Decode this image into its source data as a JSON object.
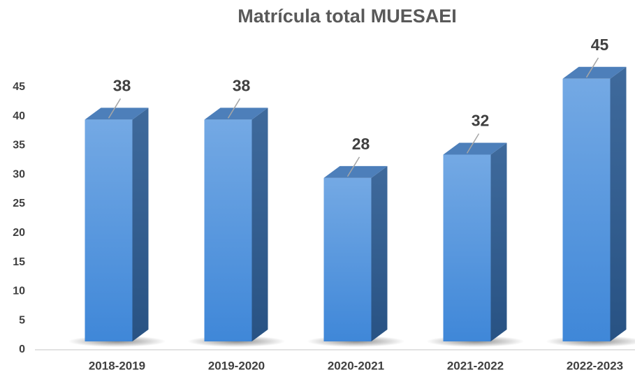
{
  "chart_data": {
    "type": "bar3d",
    "title": "Matrícula total MUESAEI",
    "categories": [
      "2018-2019",
      "2019-2020",
      "2020-2021",
      "2021-2022",
      "2022-2023"
    ],
    "values": [
      38,
      38,
      28,
      32,
      45
    ],
    "color": "#4a8fdc",
    "ylim": [
      0,
      50
    ],
    "yticks": [
      0,
      5,
      10,
      15,
      20,
      25,
      30,
      35,
      40,
      45
    ]
  }
}
